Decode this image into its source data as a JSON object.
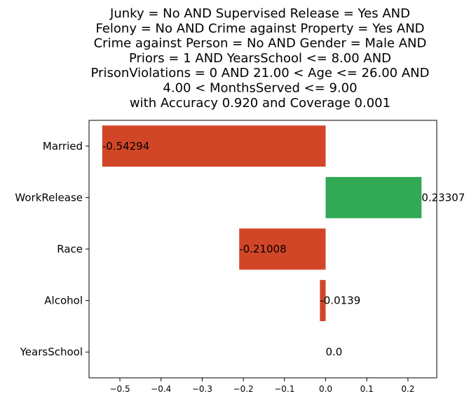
{
  "chart_data": {
    "type": "bar",
    "orientation": "horizontal",
    "title_lines": [
      "Junky = No AND Supervised Release = Yes AND",
      "Felony = No AND Crime against Property = Yes AND",
      "Crime against Person = No AND Gender = Male AND",
      "Priors = 1 AND YearsSchool <= 8.00 AND",
      "PrisonViolations = 0 AND 21.00 < Age <= 26.00 AND",
      "4.00 < MonthsServed <= 9.00",
      "with Accuracy 0.920 and Coverage 0.001"
    ],
    "categories": [
      "Married",
      "WorkRelease",
      "Race",
      "Alcohol",
      "YearsSchool"
    ],
    "values": [
      -0.54294,
      0.23307,
      -0.21008,
      -0.0139,
      0.0
    ],
    "value_labels": [
      "-0.54294",
      "0.23307",
      "-0.21008",
      "-0.0139",
      "0.0"
    ],
    "xlim": [
      -0.575,
      0.27
    ],
    "xticks": [
      -0.5,
      -0.4,
      -0.3,
      -0.2,
      -0.1,
      0.0,
      0.1,
      0.2
    ],
    "xtick_labels": [
      "−0.5",
      "−0.4",
      "−0.3",
      "−0.2",
      "−0.1",
      "0.0",
      "0.1",
      "0.2"
    ],
    "xlabel": "",
    "ylabel": "",
    "grid": false,
    "colors": {
      "negative": "#d24628",
      "positive": "#32aa55"
    }
  }
}
